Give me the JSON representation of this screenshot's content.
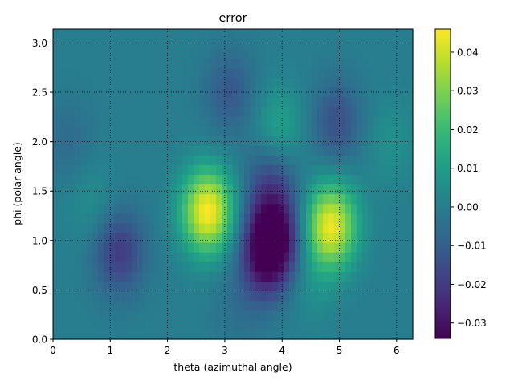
{
  "chart_data": {
    "type": "heatmap",
    "title": "error",
    "xlabel": "theta (azimuthal angle)",
    "ylabel": "phi (polar angle)",
    "xlim": [
      0,
      6.283
    ],
    "ylim": [
      0,
      3.1416
    ],
    "xticks": [
      "0",
      "1",
      "2",
      "3",
      "4",
      "5",
      "6"
    ],
    "yticks": [
      "0.0",
      "0.5",
      "1.0",
      "1.5",
      "2.0",
      "2.5",
      "3.0"
    ],
    "grid": true,
    "colormap": "viridis",
    "colorbar": {
      "range": [
        -0.034,
        0.046
      ],
      "ticks": [
        "−0.03",
        "−0.02",
        "−0.01",
        "0.00",
        "0.01",
        "0.02",
        "0.03",
        "0.04"
      ]
    },
    "features": [
      {
        "theta": 2.7,
        "phi": 1.3,
        "value": 0.046
      },
      {
        "theta": 4.85,
        "phi": 1.15,
        "value": 0.044
      },
      {
        "theta": 3.85,
        "phi": 1.05,
        "value": -0.034
      },
      {
        "theta": 3.7,
        "phi": 0.8,
        "value": -0.022
      },
      {
        "theta": 1.15,
        "phi": 0.9,
        "value": -0.02
      },
      {
        "theta": 3.8,
        "phi": 1.6,
        "value": -0.015
      },
      {
        "theta": 3.95,
        "phi": 2.15,
        "value": 0.012
      },
      {
        "theta": 3.1,
        "phi": 2.5,
        "value": -0.012
      },
      {
        "theta": 4.95,
        "phi": 2.2,
        "value": -0.014
      },
      {
        "theta": 4.5,
        "phi": 0.55,
        "value": 0.005
      },
      {
        "theta": 0.25,
        "phi": 2.0,
        "value": -0.006
      },
      {
        "theta": 0.7,
        "phi": 1.35,
        "value": 0.006
      },
      {
        "theta": 5.9,
        "phi": 2.0,
        "value": 0.006
      },
      {
        "theta": 3.2,
        "phi": 0.3,
        "value": -0.004
      }
    ]
  }
}
